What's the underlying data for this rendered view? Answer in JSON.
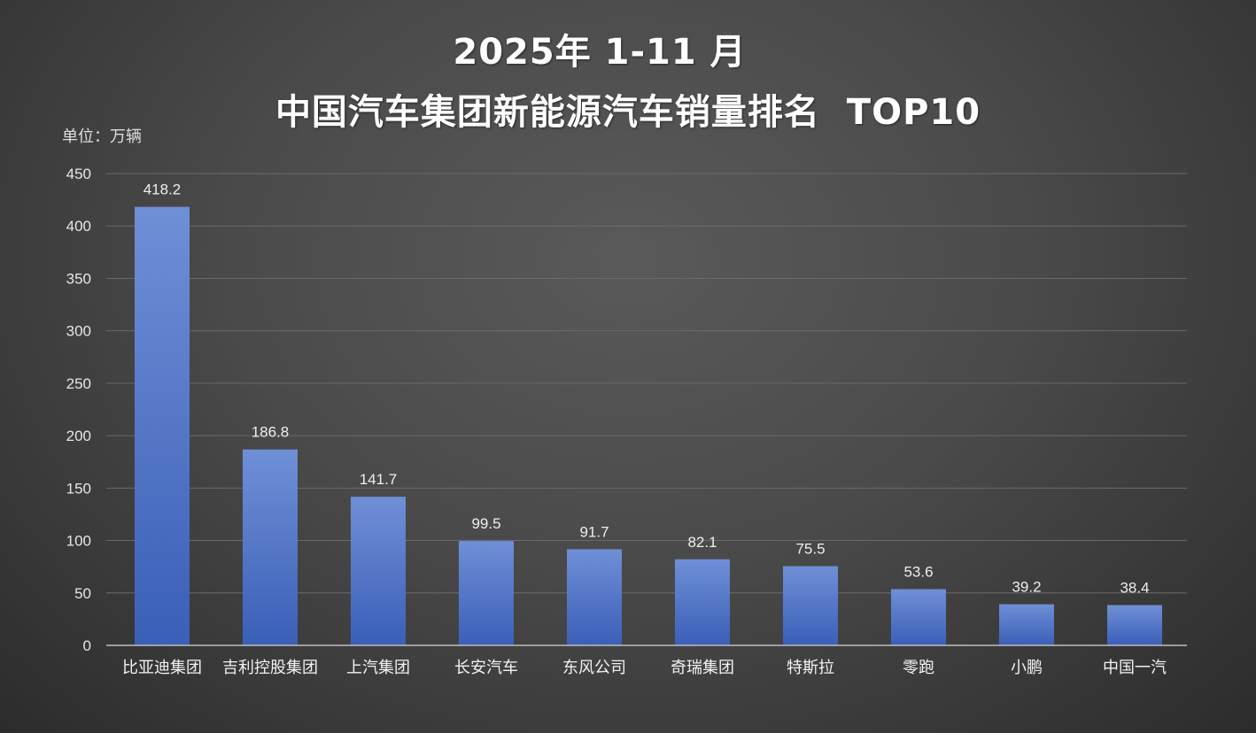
{
  "chart_data": {
    "type": "bar",
    "title_line1": "2025年 1-11 月",
    "title_line2": "中国汽车集团新能源汽车销量排名  TOP10",
    "ylabel": "单位：万辆",
    "xlabel": "",
    "ylim": [
      0,
      450
    ],
    "yticks": [
      0,
      50,
      100,
      150,
      200,
      250,
      300,
      350,
      400,
      450
    ],
    "grid": true,
    "legend": "none",
    "categories": [
      "比亚迪集团",
      "吉利控股集团",
      "上汽集团",
      "长安汽车",
      "东风公司",
      "奇瑞集团",
      "特斯拉",
      "零跑",
      "小鹏",
      "中国一汽"
    ],
    "values": [
      418.2,
      186.8,
      141.7,
      99.5,
      91.7,
      82.1,
      75.5,
      53.6,
      39.2,
      38.4
    ],
    "value_labels": [
      "418.2",
      "186.8",
      "141.7",
      "99.5",
      "91.7",
      "82.1",
      "75.5",
      "53.6",
      "39.2",
      "38.4"
    ],
    "colors": {
      "bar_top": "#6f8fd6",
      "bar_bottom": "#3a5fb8",
      "grid": "#6a6a6a",
      "axis": "#bdbdbd"
    }
  }
}
